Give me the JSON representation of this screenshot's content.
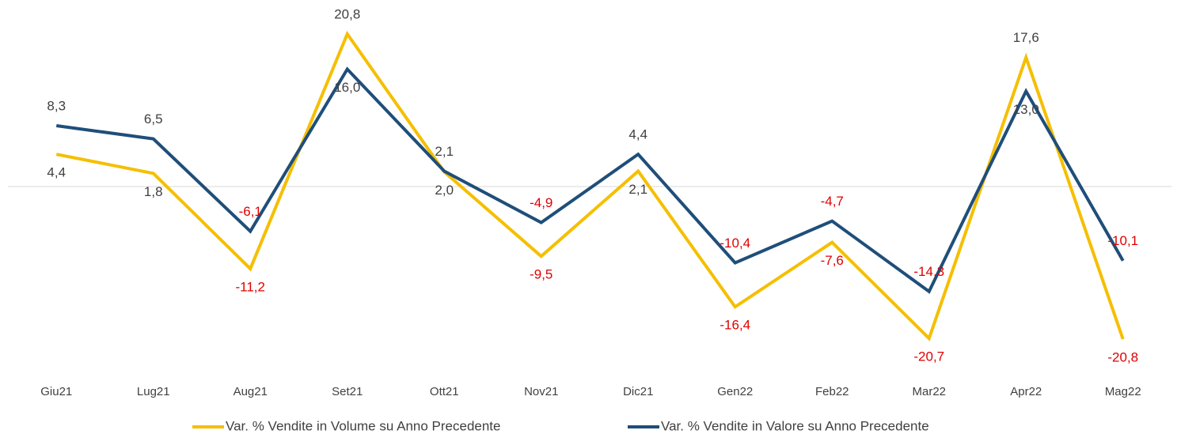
{
  "chart_data": {
    "type": "line",
    "categories": [
      "Giu21",
      "Lug21",
      "Aug21",
      "Set21",
      "Ott21",
      "Nov21",
      "Dic21",
      "Gen22",
      "Feb22",
      "Mar22",
      "Apr22",
      "Mag22"
    ],
    "series": [
      {
        "name": "Var. % Vendite in Volume su Anno Precedente",
        "color": "#f5bf00",
        "values": [
          4.4,
          1.8,
          -11.2,
          20.8,
          2.0,
          -9.5,
          2.1,
          -16.4,
          -7.6,
          -20.7,
          17.6,
          -20.8
        ],
        "value_labels": [
          "4,4",
          "1,8",
          "-11,2",
          "20,8",
          "2,0",
          "-9,5",
          "2,1",
          "-16,4",
          "-7,6",
          "-20,7",
          "17,6",
          "-20,8"
        ]
      },
      {
        "name": "Var. % Vendite in Valore su Anno Precedente",
        "color": "#1f4e79",
        "values": [
          8.3,
          6.5,
          -6.1,
          16.0,
          2.1,
          -4.9,
          4.4,
          -10.4,
          -4.7,
          -14.3,
          13.0,
          -10.1
        ],
        "value_labels": [
          "8,3",
          "6,5",
          "-6,1",
          "16,0",
          "2,1",
          "-4,9",
          "4,4",
          "-10,4",
          "-4,7",
          "-14,3",
          "13,0",
          "-10,1"
        ]
      }
    ],
    "ylim": [
      -25,
      25
    ],
    "legend": "bottom"
  }
}
